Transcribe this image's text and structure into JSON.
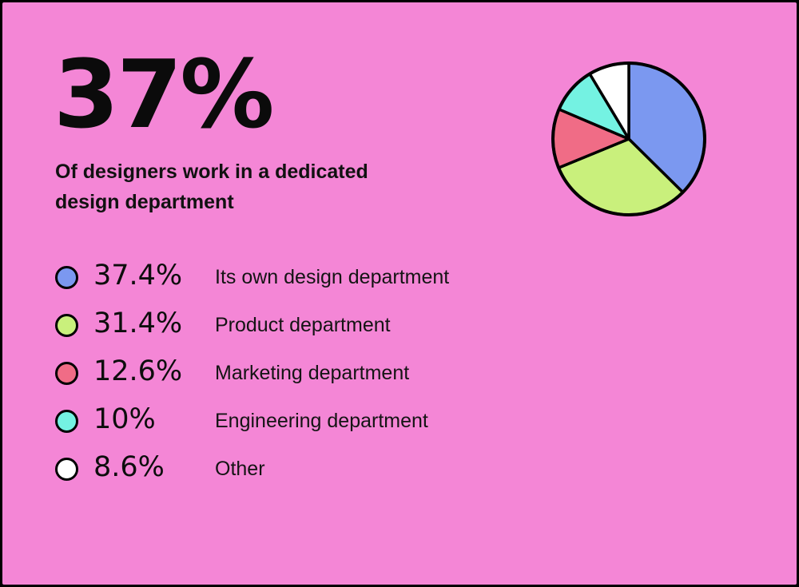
{
  "headline": {
    "value": "37%",
    "subtitle": "Of designers work in a dedicated design department"
  },
  "legend": [
    {
      "value": "37.4%",
      "label": "Its own design department",
      "color": "#7b98f0"
    },
    {
      "value": "31.4%",
      "label": "Product department",
      "color": "#c9f07c"
    },
    {
      "value": "12.6%",
      "label": "Marketing department",
      "color": "#f06c86"
    },
    {
      "value": "10%",
      "label": "Engineering department",
      "color": "#74f2e2"
    },
    {
      "value": "8.6%",
      "label": "Other",
      "color": "#ffffff"
    }
  ],
  "chart_data": {
    "type": "pie",
    "categories": [
      "Its own design department",
      "Product department",
      "Marketing department",
      "Engineering department",
      "Other"
    ],
    "values": [
      37.4,
      31.4,
      12.6,
      10,
      8.6
    ],
    "colors": [
      "#7b98f0",
      "#c9f07c",
      "#f06c86",
      "#74f2e2",
      "#ffffff"
    ],
    "start": "12 o'clock",
    "direction": "clockwise",
    "outline_color": "#000000"
  }
}
